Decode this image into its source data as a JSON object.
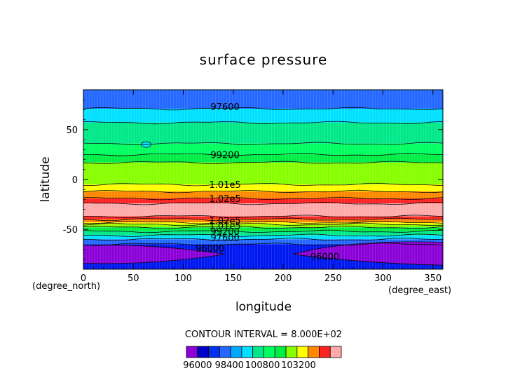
{
  "chart_data": {
    "type": "contour",
    "title": "surface pressure",
    "xlabel": "longitude",
    "ylabel": "latitude",
    "x_unit": "(degree_east)",
    "y_unit": "(degree_north)",
    "xlim": [
      0,
      360
    ],
    "ylim": [
      -90,
      90
    ],
    "x_ticks": [
      0,
      50,
      100,
      150,
      200,
      250,
      300,
      350
    ],
    "y_ticks": [
      -50,
      0,
      50
    ],
    "contour_interval_text": "CONTOUR INTERVAL = 8.000E+02",
    "contour_labels": [
      {
        "text": "97600",
        "lon": 125,
        "lat": 73
      },
      {
        "text": "99200",
        "lon": 125,
        "lat": 25
      },
      {
        "text": "1.01e5",
        "lon": 125,
        "lat": -5
      },
      {
        "text": "1.02e5",
        "lon": 125,
        "lat": -19
      },
      {
        "text": "1.02e5",
        "lon": 125,
        "lat": -41
      },
      {
        "text": "1.01e5",
        "lon": 125,
        "lat": -46
      },
      {
        "text": "99200",
        "lon": 125,
        "lat": -52
      },
      {
        "text": "97600",
        "lon": 125,
        "lat": -58
      },
      {
        "text": "96000",
        "lon": 110,
        "lat": -69
      },
      {
        "text": "96000",
        "lon": 225,
        "lat": -77
      }
    ],
    "bands": [
      {
        "lat_top": 90,
        "lat_bottom": 71,
        "color": "#2468ff"
      },
      {
        "lat_top": 71,
        "lat_bottom": 57,
        "color": "#00e0ff"
      },
      {
        "lat_top": 57,
        "lat_bottom": 36,
        "color": "#00e888"
      },
      {
        "lat_top": 36,
        "lat_bottom": 25,
        "color": "#00ff60"
      },
      {
        "lat_top": 25,
        "lat_bottom": 17,
        "color": "#00ee44"
      },
      {
        "lat_top": 17,
        "lat_bottom": -5,
        "color": "#88ff00"
      },
      {
        "lat_top": -5,
        "lat_bottom": -12,
        "color": "#ffff00"
      },
      {
        "lat_top": -12,
        "lat_bottom": -19,
        "color": "#ff8800"
      },
      {
        "lat_top": -19,
        "lat_bottom": -24,
        "color": "#ff2222"
      },
      {
        "lat_top": -24,
        "lat_bottom": -37,
        "color": "#ffaaaa"
      },
      {
        "lat_top": -37,
        "lat_bottom": -40,
        "color": "#ff2222"
      },
      {
        "lat_top": -40,
        "lat_bottom": -43,
        "color": "#ff8800"
      },
      {
        "lat_top": -43,
        "lat_bottom": -45,
        "color": "#ffff00"
      },
      {
        "lat_top": -45,
        "lat_bottom": -48,
        "color": "#88ff00"
      },
      {
        "lat_top": -48,
        "lat_bottom": -52,
        "color": "#00ee44"
      },
      {
        "lat_top": -52,
        "lat_bottom": -56,
        "color": "#00e888"
      },
      {
        "lat_top": -56,
        "lat_bottom": -60,
        "color": "#00e0ff"
      },
      {
        "lat_top": -60,
        "lat_bottom": -65,
        "color": "#2468ff"
      },
      {
        "lat_top": -65,
        "lat_bottom": -90,
        "color": "#0018f0"
      }
    ],
    "colorbar": {
      "colors": [
        "#8a00d8",
        "#0000c8",
        "#0030f0",
        "#2468ff",
        "#00a8ff",
        "#00e0ff",
        "#00e888",
        "#00ff60",
        "#00ee44",
        "#88ff00",
        "#ffff00",
        "#ff8800",
        "#ff2222",
        "#ffaaaa"
      ],
      "tick_labels": [
        "96000",
        "98400",
        "100800",
        "103200"
      ]
    }
  }
}
